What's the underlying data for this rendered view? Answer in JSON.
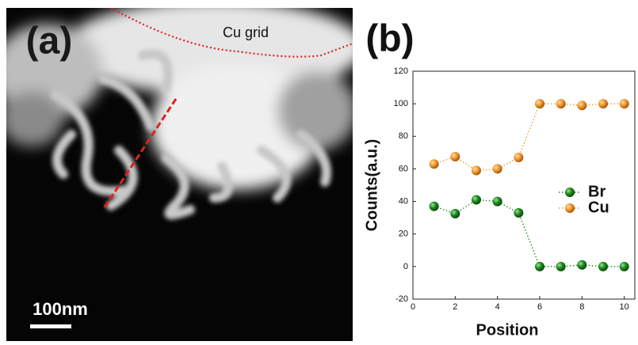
{
  "image": {
    "label": "(a)",
    "annotation": "Cu grid",
    "scale_bar": "100nm"
  },
  "chart_data": {
    "type": "line",
    "label": "(b)",
    "x_label": "Position",
    "y_label": "Counts(a.u.)",
    "x": [
      1,
      2,
      3,
      4,
      5,
      6,
      7,
      8,
      9,
      10
    ],
    "series": [
      {
        "name": "Br",
        "color": "#1f8c1f",
        "values": [
          37,
          32.5,
          41,
          40,
          33,
          0,
          0,
          1,
          0,
          0
        ]
      },
      {
        "name": "Cu",
        "color": "#f5992e",
        "values": [
          63,
          67.5,
          59,
          60,
          67,
          100,
          100,
          99,
          100,
          100
        ]
      }
    ],
    "xlim": [
      0,
      10.5
    ],
    "xticks": [
      0,
      2,
      4,
      6,
      8,
      10
    ],
    "ylim": [
      -20,
      120
    ],
    "yticks": [
      -20,
      0,
      20,
      40,
      60,
      80,
      100,
      120
    ],
    "legend": "right"
  }
}
